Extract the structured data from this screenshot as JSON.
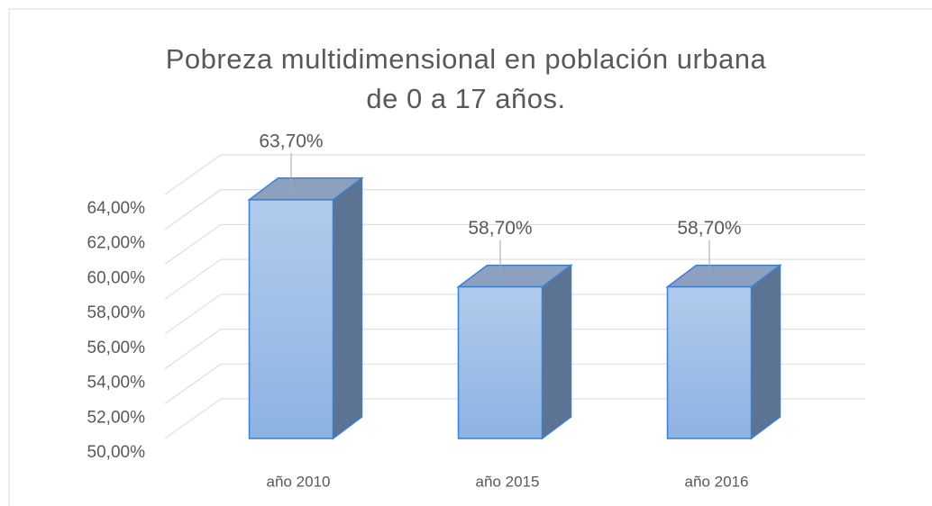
{
  "chart_data": {
    "type": "bar3d",
    "title": "Pobreza multidimensional en población urbana de 0 a 17 años.",
    "categories": [
      "año 2010",
      "año 2015",
      "año 2016"
    ],
    "values": [
      63.7,
      58.7,
      58.7
    ],
    "value_labels": [
      "63,70%",
      "58,70%",
      "58,70%"
    ],
    "color": "#9dbde6",
    "ylim": [
      50,
      64
    ],
    "yticks": [
      {
        "value": 50,
        "label": "50,00%"
      },
      {
        "value": 52,
        "label": "52,00%"
      },
      {
        "value": 54,
        "label": "54,00%"
      },
      {
        "value": 56,
        "label": "56,00%"
      },
      {
        "value": 58,
        "label": "58,00%"
      },
      {
        "value": 60,
        "label": "60,00%"
      },
      {
        "value": 62,
        "label": "62,00%"
      },
      {
        "value": 64,
        "label": "64,00%"
      }
    ],
    "grid": true
  }
}
